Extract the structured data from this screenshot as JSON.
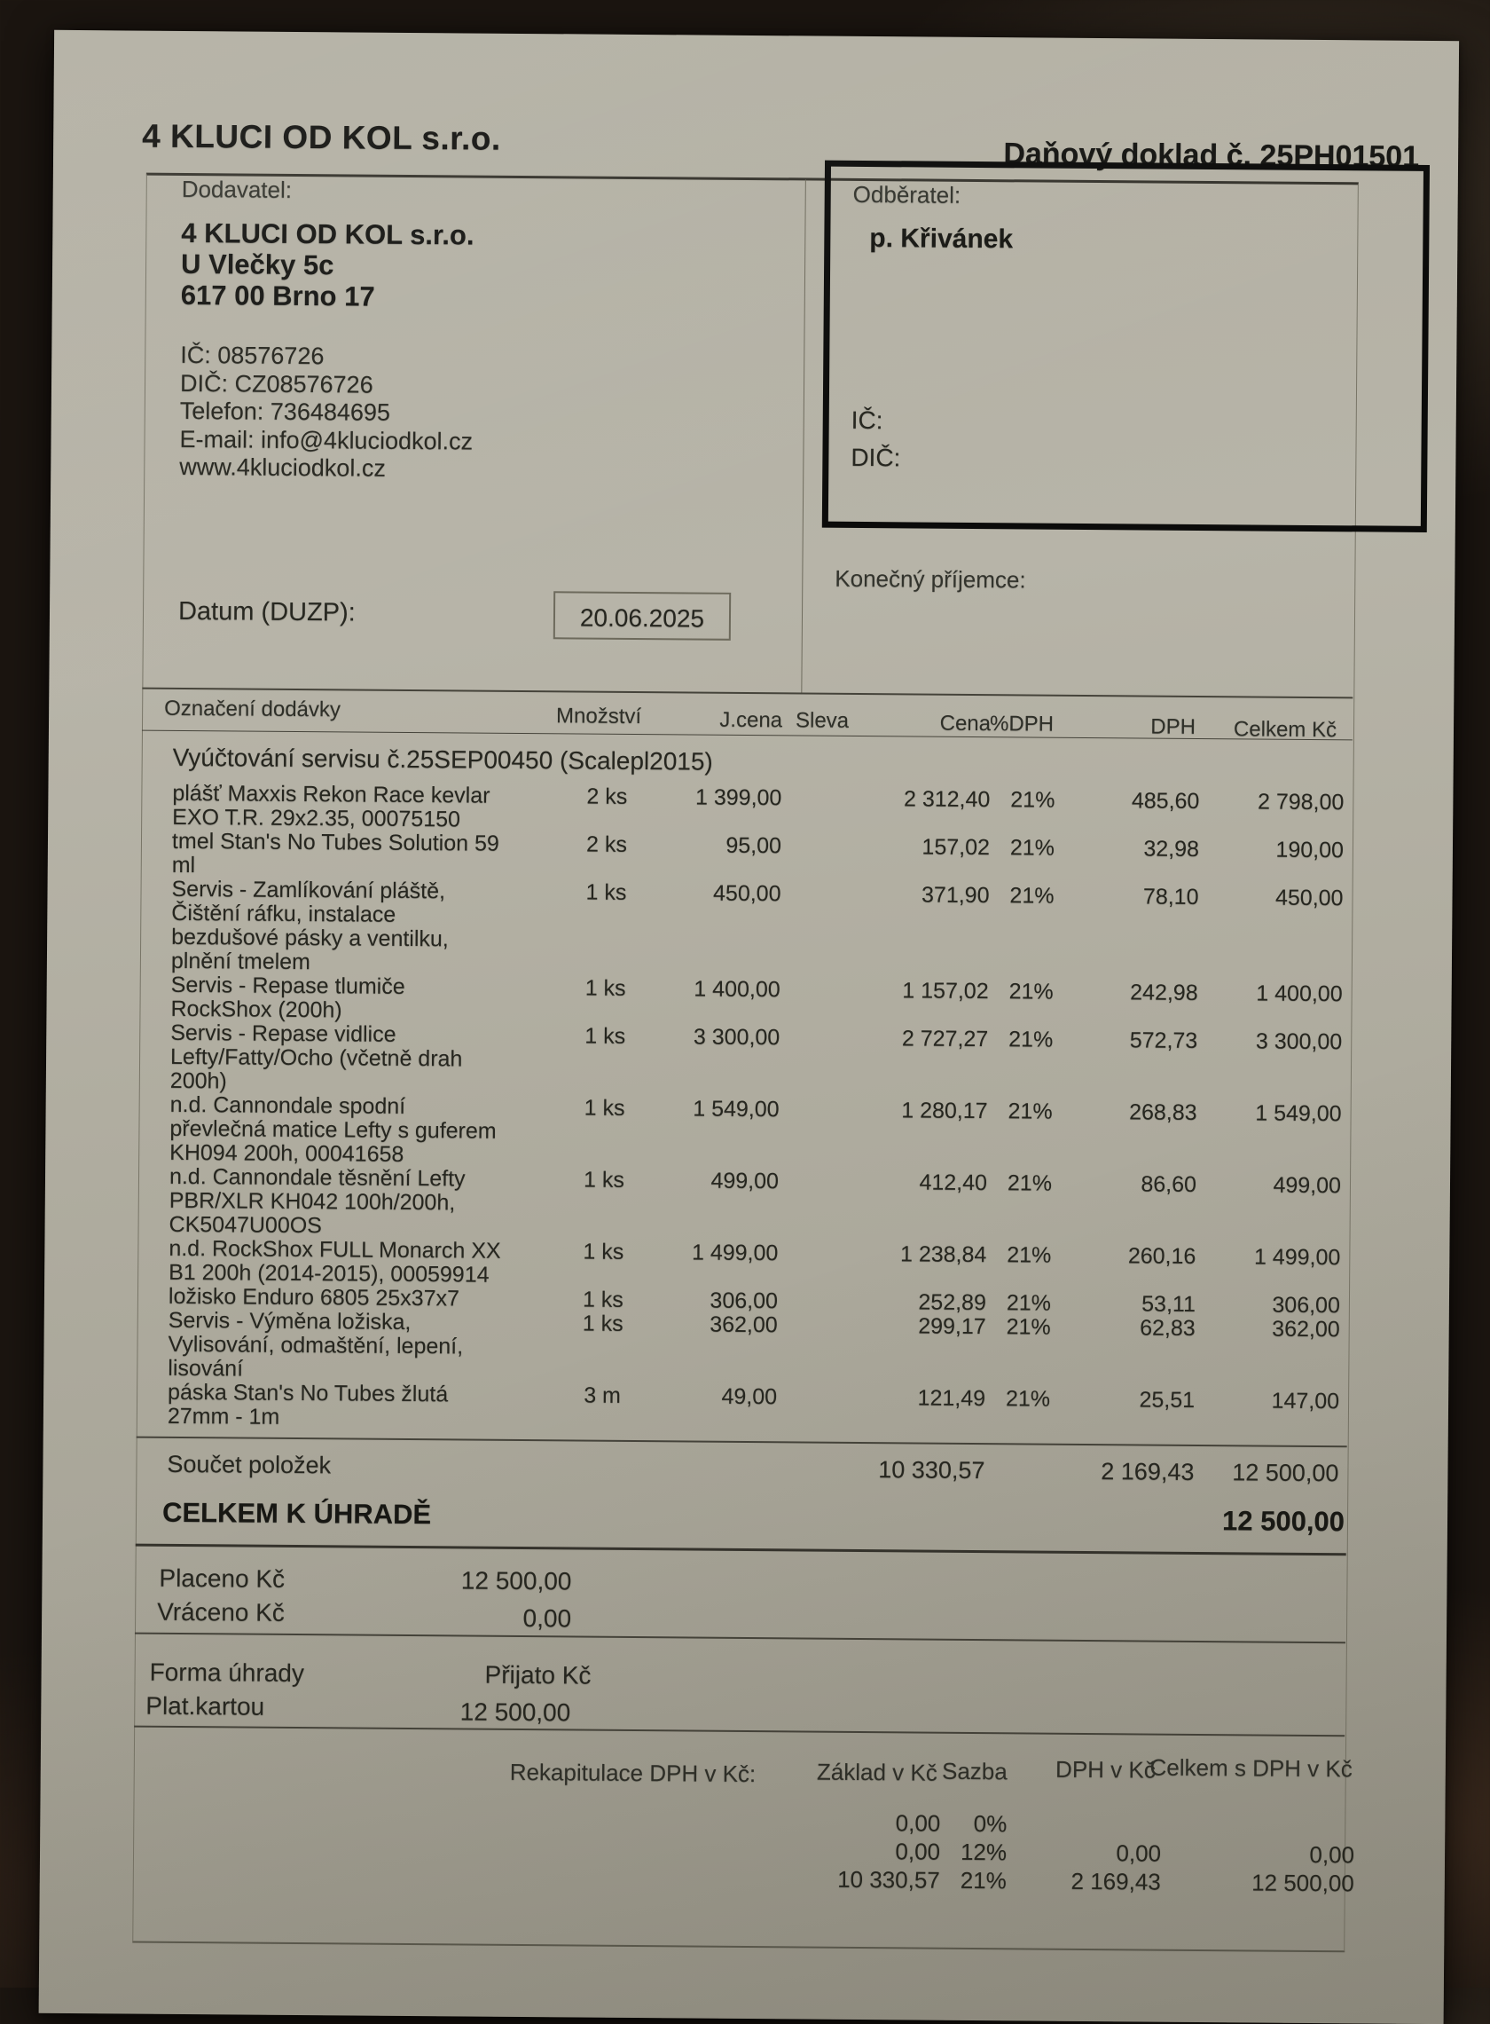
{
  "invoice": {
    "company_title": "4 KLUCI OD KOL s.r.o.",
    "doc_title": "Daňový doklad č. 25PH01501",
    "supplier": {
      "label": "Dodavatel:",
      "name": "4 KLUCI OD KOL s.r.o.",
      "street": "U Vlečky 5c",
      "city": "617 00 Brno 17",
      "ic": "IČ: 08576726",
      "dic": "DIČ: CZ08576726",
      "phone": "Telefon: 736484695",
      "email": "E-mail: info@4kluciodkol.cz",
      "web": "www.4kluciodkol.cz"
    },
    "customer": {
      "label": "Odběratel:",
      "name": "p. Křivánek",
      "ic_label": "IČ:",
      "dic_label": "DIČ:"
    },
    "final_recipient_label": "Konečný příjemce:",
    "date": {
      "label": "Datum (DUZP):",
      "value": "20.06.2025"
    },
    "table": {
      "headers": {
        "desc": "Označení dodávky",
        "qty": "Množství",
        "unit_price": "J.cena",
        "discount": "Sleva",
        "price": "Cena",
        "vat_pct": "%DPH",
        "vat": "DPH",
        "total": "Celkem Kč"
      },
      "section_title": "Vyúčtování servisu č.25SEP00450 (Scalepl2015)",
      "rows": [
        {
          "desc_lines": [
            "plášť Maxxis Rekon Race kevlar",
            "EXO T.R. 29x2.35, 00075150"
          ],
          "qty": "2 ks",
          "unit_price": "1 399,00",
          "price": "2 312,40",
          "vat_pct": "21%",
          "vat": "485,60",
          "total": "2 798,00"
        },
        {
          "desc_lines": [
            "tmel Stan's No Tubes Solution 59",
            "ml"
          ],
          "qty": "2 ks",
          "unit_price": "95,00",
          "price": "157,02",
          "vat_pct": "21%",
          "vat": "32,98",
          "total": "190,00"
        },
        {
          "desc_lines": [
            "Servis - Zamlíkování pláště,",
            "Čištění ráfku, instalace",
            "bezdušové pásky a ventilku,",
            "plnění tmelem"
          ],
          "qty": "1 ks",
          "unit_price": "450,00",
          "price": "371,90",
          "vat_pct": "21%",
          "vat": "78,10",
          "total": "450,00"
        },
        {
          "desc_lines": [
            "Servis - Repase tlumiče",
            "RockShox (200h)"
          ],
          "qty": "1 ks",
          "unit_price": "1 400,00",
          "price": "1 157,02",
          "vat_pct": "21%",
          "vat": "242,98",
          "total": "1 400,00"
        },
        {
          "desc_lines": [
            "Servis - Repase vidlice",
            "Lefty/Fatty/Ocho (včetně drah",
            "200h)"
          ],
          "qty": "1 ks",
          "unit_price": "3 300,00",
          "price": "2 727,27",
          "vat_pct": "21%",
          "vat": "572,73",
          "total": "3 300,00"
        },
        {
          "desc_lines": [
            "n.d. Cannondale spodní",
            "převlečná matice Lefty s guferem",
            "KH094 200h, 00041658"
          ],
          "qty": "1 ks",
          "unit_price": "1 549,00",
          "price": "1 280,17",
          "vat_pct": "21%",
          "vat": "268,83",
          "total": "1 549,00"
        },
        {
          "desc_lines": [
            "n.d. Cannondale těsnění Lefty",
            "PBR/XLR KH042 100h/200h,",
            "CK5047U00OS"
          ],
          "qty": "1 ks",
          "unit_price": "499,00",
          "price": "412,40",
          "vat_pct": "21%",
          "vat": "86,60",
          "total": "499,00"
        },
        {
          "desc_lines": [
            "n.d. RockShox FULL Monarch XX",
            "B1 200h (2014-2015), 00059914"
          ],
          "qty": "1 ks",
          "unit_price": "1 499,00",
          "price": "1 238,84",
          "vat_pct": "21%",
          "vat": "260,16",
          "total": "1 499,00"
        },
        {
          "desc_lines": [
            "ložisko Enduro 6805 25x37x7"
          ],
          "qty": "1 ks",
          "unit_price": "306,00",
          "price": "252,89",
          "vat_pct": "21%",
          "vat": "53,11",
          "total": "306,00"
        },
        {
          "desc_lines": [
            "Servis - Výměna ložiska,",
            "Vylisování, odmaštění, lepení,",
            "lisování"
          ],
          "qty": "1 ks",
          "unit_price": "362,00",
          "price": "299,17",
          "vat_pct": "21%",
          "vat": "62,83",
          "total": "362,00"
        },
        {
          "desc_lines": [
            "páska Stan's No Tubes žlutá",
            "27mm - 1m"
          ],
          "qty": "3 m",
          "unit_price": "49,00",
          "price": "121,49",
          "vat_pct": "21%",
          "vat": "25,51",
          "total": "147,00"
        }
      ]
    },
    "totals": {
      "sum_label": "Součet položek",
      "sum_price": "10 330,57",
      "sum_vat": "2 169,43",
      "sum_total": "12 500,00",
      "grand_label": "CELKEM K ÚHRADĚ",
      "grand_total": "12 500,00"
    },
    "payment": {
      "paid_label": "Placeno Kč",
      "paid": "12 500,00",
      "returned_label": "Vráceno Kč",
      "returned": "0,00",
      "method_label": "Forma úhrady",
      "received_label": "Přijato Kč",
      "method": "Plat.kartou",
      "received": "12 500,00"
    },
    "vat_recap": {
      "label": "Rekapitulace DPH v Kč:",
      "headers": [
        "Základ v Kč",
        "Sazba",
        "DPH v Kč",
        "Celkem s DPH v Kč"
      ],
      "rows": [
        [
          "0,00",
          "0%",
          "",
          ""
        ],
        [
          "0,00",
          "12%",
          "0,00",
          "0,00"
        ],
        [
          "10 330,57",
          "21%",
          "2 169,43",
          "12 500,00"
        ]
      ]
    }
  }
}
